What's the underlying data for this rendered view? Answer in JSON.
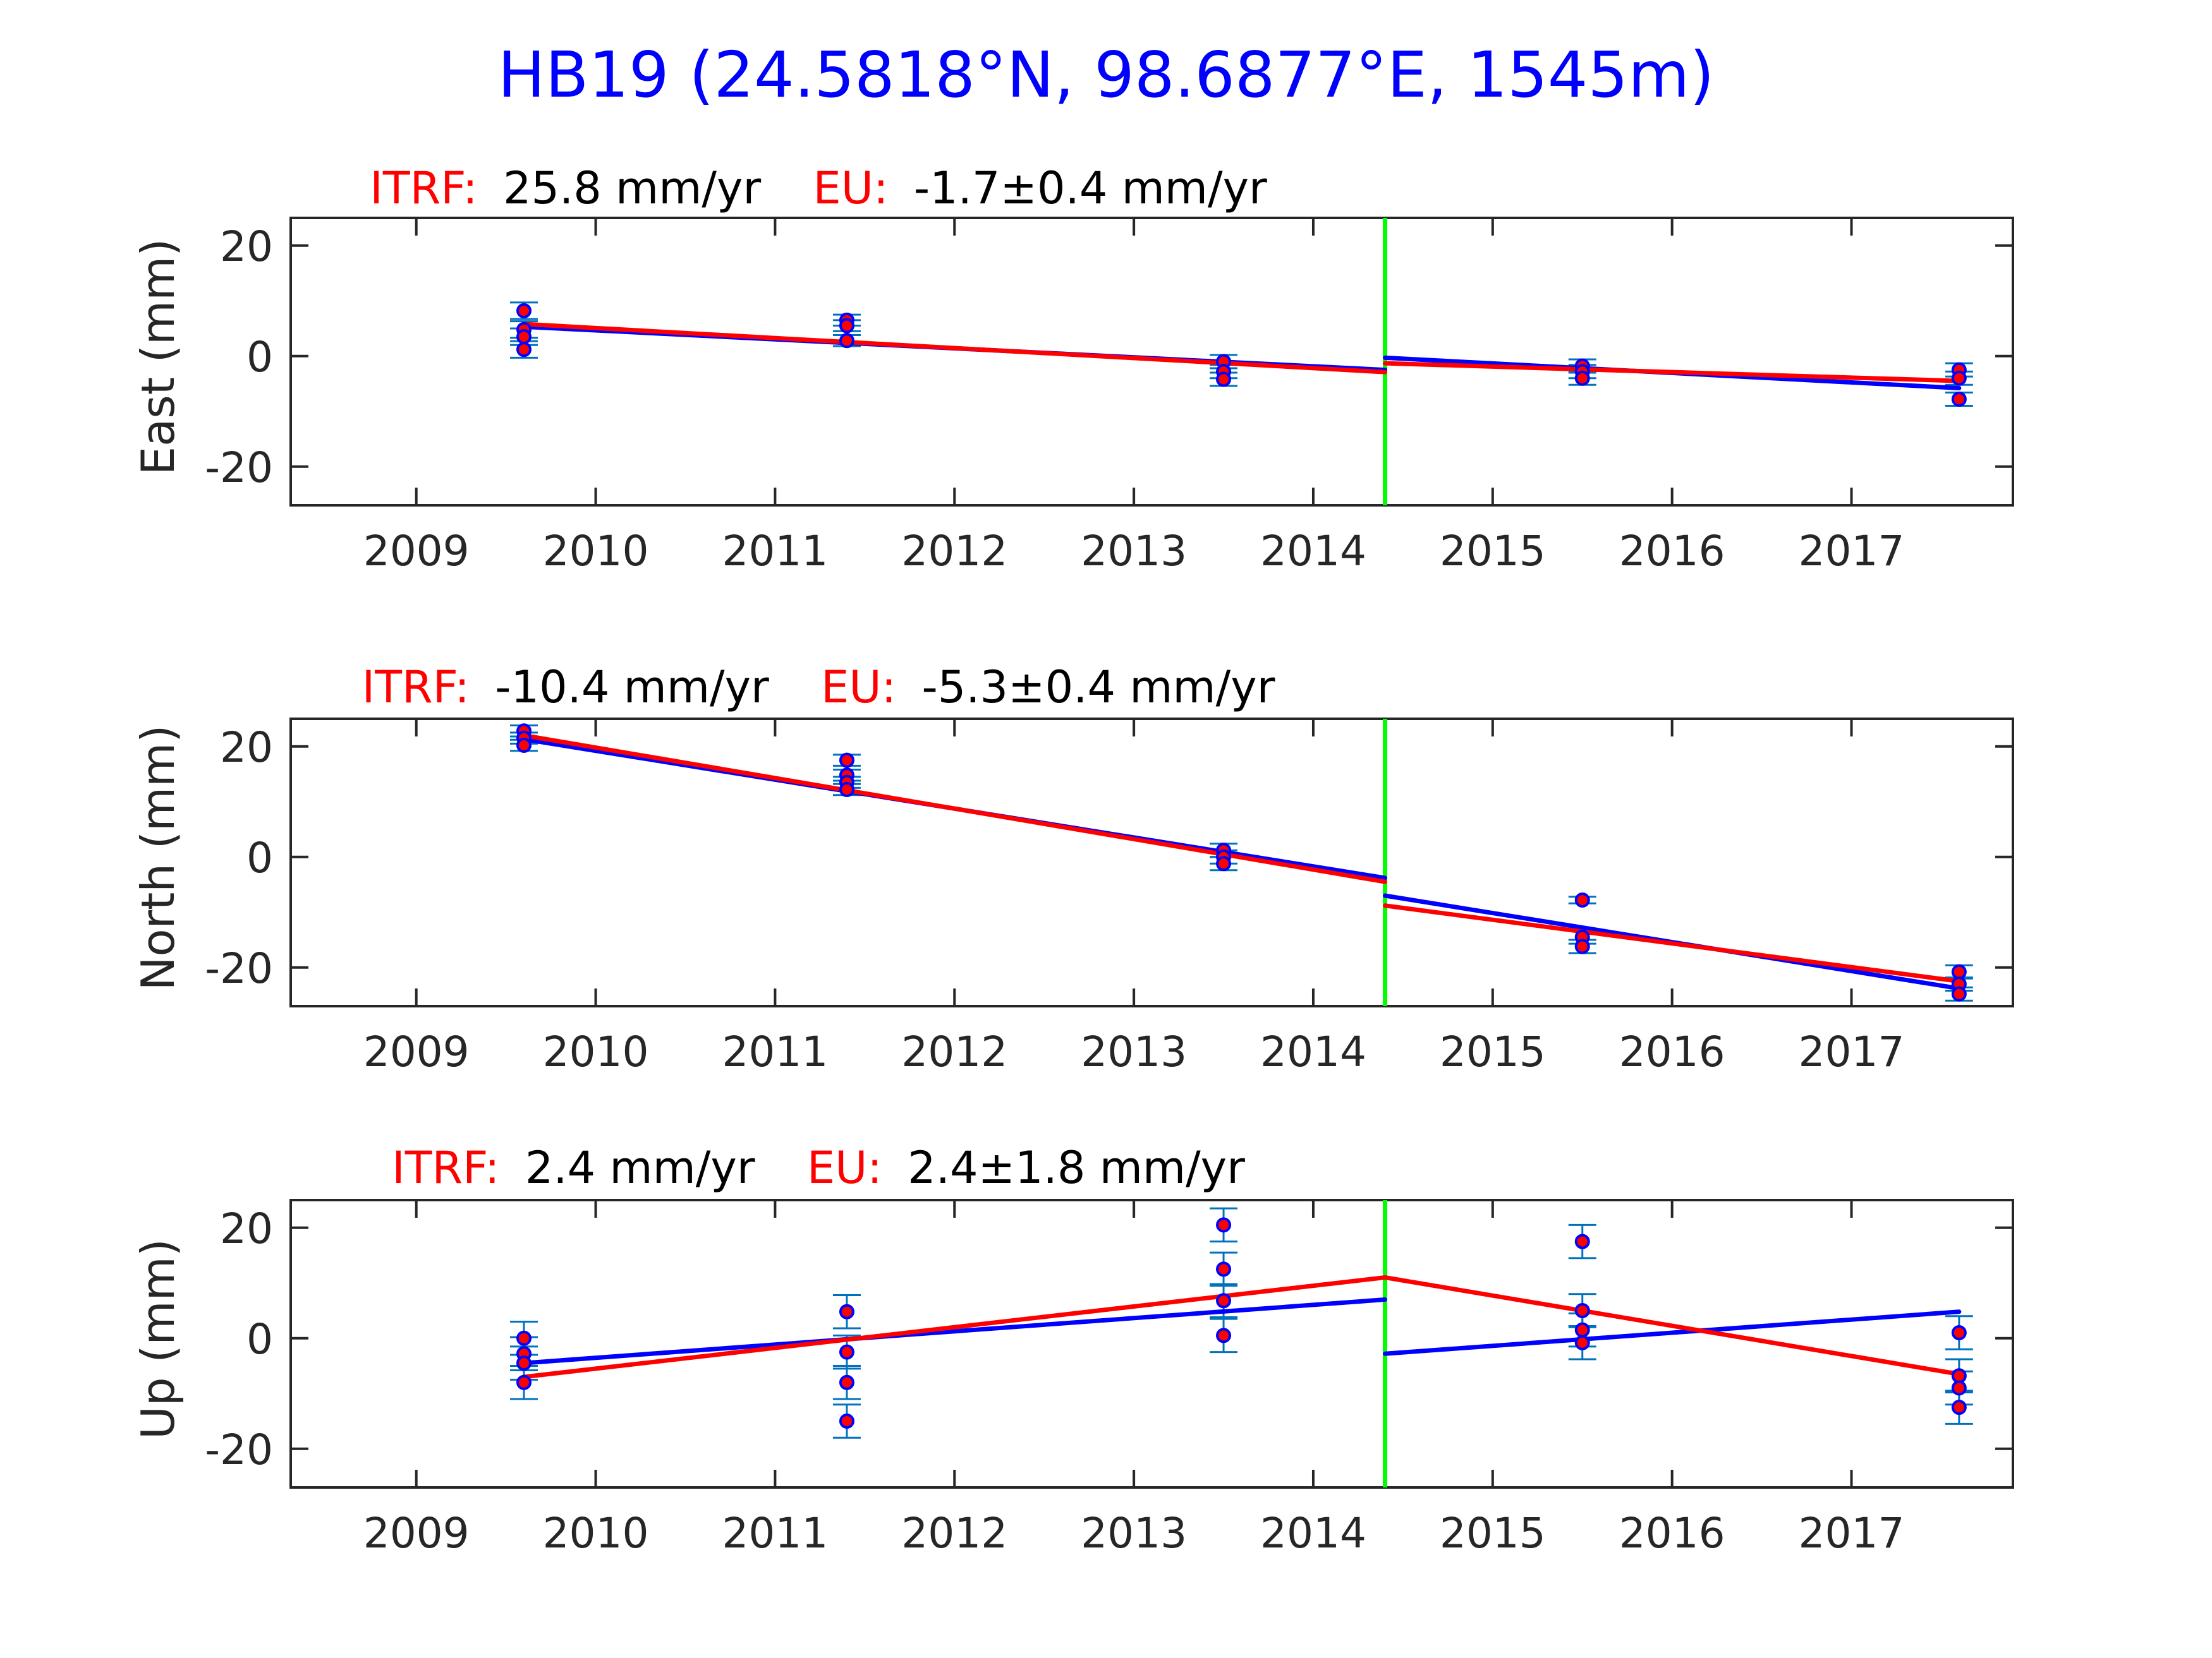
{
  "title": "HB19 (24.5818°N, 98.6877°E, 1545m)",
  "colors": {
    "title": "#0000ff",
    "label_red": "#ff0000",
    "fit_blue": "#0000ff",
    "fit_red": "#ff0000",
    "event_line": "#00ff00",
    "errorbar": "#0072bd",
    "marker_edge": "#0000ff",
    "marker_fill": "#ff0000",
    "axis": "#262626"
  },
  "chart_data": [
    {
      "type": "scatter",
      "title_parts": {
        "itrf_label": "ITRF:",
        "itrf_value": "25.8 mm/yr",
        "eu_label": "EU:",
        "eu_value": "-1.7±0.4 mm/yr"
      },
      "ylabel": "East (mm)",
      "xlim": [
        2008.3,
        2017.9
      ],
      "ylim": [
        -27,
        25
      ],
      "x_ticks": [
        2009,
        2010,
        2011,
        2012,
        2013,
        2014,
        2015,
        2016,
        2017
      ],
      "y_ticks": [
        20,
        0,
        -20
      ],
      "grid": false,
      "event_x": 2014.4,
      "points": [
        {
          "x": 2009.6,
          "y": 8.2,
          "err": 1.5
        },
        {
          "x": 2009.6,
          "y": 4.8,
          "err": 1.5
        },
        {
          "x": 2009.6,
          "y": 3.5,
          "err": 1.5
        },
        {
          "x": 2009.6,
          "y": 1.2,
          "err": 1.5
        },
        {
          "x": 2011.4,
          "y": 6.5,
          "err": 1.0
        },
        {
          "x": 2011.4,
          "y": 5.5,
          "err": 1.0
        },
        {
          "x": 2011.4,
          "y": 2.8,
          "err": 1.0
        },
        {
          "x": 2013.5,
          "y": -1.0,
          "err": 1.2
        },
        {
          "x": 2013.5,
          "y": -2.8,
          "err": 1.2
        },
        {
          "x": 2013.5,
          "y": -4.2,
          "err": 1.2
        },
        {
          "x": 2015.5,
          "y": -1.8,
          "err": 1.2
        },
        {
          "x": 2015.5,
          "y": -2.8,
          "err": 1.2
        },
        {
          "x": 2015.5,
          "y": -4.0,
          "err": 1.2
        },
        {
          "x": 2017.6,
          "y": -2.5,
          "err": 1.2
        },
        {
          "x": 2017.6,
          "y": -4.0,
          "err": 1.2
        },
        {
          "x": 2017.6,
          "y": -7.8,
          "err": 1.2
        }
      ],
      "fits": [
        {
          "color": "blue",
          "segments": [
            [
              [
                2009.6,
                5.3
              ],
              [
                2014.4,
                -2.5
              ]
            ],
            [
              [
                2014.4,
                -0.3
              ],
              [
                2017.6,
                -5.8
              ]
            ]
          ]
        },
        {
          "color": "red",
          "segments": [
            [
              [
                2009.6,
                5.8
              ],
              [
                2014.4,
                -2.9
              ]
            ],
            [
              [
                2014.4,
                -1.3
              ],
              [
                2017.6,
                -4.5
              ]
            ]
          ]
        }
      ]
    },
    {
      "type": "scatter",
      "title_parts": {
        "itrf_label": "ITRF:",
        "itrf_value": "-10.4 mm/yr",
        "eu_label": "EU:",
        "eu_value": "-5.3±0.4 mm/yr"
      },
      "ylabel": "North (mm)",
      "xlim": [
        2008.3,
        2017.9
      ],
      "ylim": [
        -27,
        25
      ],
      "x_ticks": [
        2009,
        2010,
        2011,
        2012,
        2013,
        2014,
        2015,
        2016,
        2017
      ],
      "y_ticks": [
        20,
        0,
        -20
      ],
      "grid": false,
      "event_x": 2014.4,
      "points": [
        {
          "x": 2009.6,
          "y": 22.8,
          "err": 1.0
        },
        {
          "x": 2009.6,
          "y": 21.5,
          "err": 1.0
        },
        {
          "x": 2009.6,
          "y": 20.2,
          "err": 1.0
        },
        {
          "x": 2011.4,
          "y": 17.5,
          "err": 1.0
        },
        {
          "x": 2011.4,
          "y": 14.8,
          "err": 1.0
        },
        {
          "x": 2011.4,
          "y": 13.5,
          "err": 1.0
        },
        {
          "x": 2011.4,
          "y": 12.2,
          "err": 1.0
        },
        {
          "x": 2013.5,
          "y": 1.2,
          "err": 1.2
        },
        {
          "x": 2013.5,
          "y": 0.0,
          "err": 1.2
        },
        {
          "x": 2013.5,
          "y": -1.2,
          "err": 1.2
        },
        {
          "x": 2015.5,
          "y": -7.8,
          "err": 0.6
        },
        {
          "x": 2015.5,
          "y": -14.5,
          "err": 1.2
        },
        {
          "x": 2015.5,
          "y": -16.2,
          "err": 1.2
        },
        {
          "x": 2017.6,
          "y": -20.8,
          "err": 1.2
        },
        {
          "x": 2017.6,
          "y": -23.0,
          "err": 1.2
        },
        {
          "x": 2017.6,
          "y": -24.8,
          "err": 1.2
        }
      ],
      "fits": [
        {
          "color": "blue",
          "segments": [
            [
              [
                2009.6,
                21.3
              ],
              [
                2014.4,
                -3.8
              ]
            ],
            [
              [
                2014.4,
                -7.0
              ],
              [
                2017.6,
                -23.8
              ]
            ]
          ]
        },
        {
          "color": "red",
          "segments": [
            [
              [
                2009.6,
                22.0
              ],
              [
                2014.4,
                -4.5
              ]
            ],
            [
              [
                2014.4,
                -8.8
              ],
              [
                2017.6,
                -22.5
              ]
            ]
          ]
        }
      ]
    },
    {
      "type": "scatter",
      "title_parts": {
        "itrf_label": "ITRF:",
        "itrf_value": "2.4 mm/yr",
        "eu_label": "EU:",
        "eu_value": "2.4±1.8 mm/yr"
      },
      "ylabel": "Up (mm)",
      "xlim": [
        2008.3,
        2017.9
      ],
      "ylim": [
        -27,
        25
      ],
      "x_ticks": [
        2009,
        2010,
        2011,
        2012,
        2013,
        2014,
        2015,
        2016,
        2017
      ],
      "y_ticks": [
        20,
        0,
        -20
      ],
      "grid": false,
      "event_x": 2014.4,
      "points": [
        {
          "x": 2009.6,
          "y": 0.0,
          "err": 3.0
        },
        {
          "x": 2009.6,
          "y": -2.8,
          "err": 3.0
        },
        {
          "x": 2009.6,
          "y": -4.5,
          "err": 3.0
        },
        {
          "x": 2009.6,
          "y": -8.0,
          "err": 3.0
        },
        {
          "x": 2011.4,
          "y": 4.8,
          "err": 3.0
        },
        {
          "x": 2011.4,
          "y": -2.5,
          "err": 3.0
        },
        {
          "x": 2011.4,
          "y": -8.0,
          "err": 3.0
        },
        {
          "x": 2011.4,
          "y": -15.0,
          "err": 3.0
        },
        {
          "x": 2013.5,
          "y": 20.5,
          "err": 3.0
        },
        {
          "x": 2013.5,
          "y": 12.5,
          "err": 3.0
        },
        {
          "x": 2013.5,
          "y": 6.8,
          "err": 3.0
        },
        {
          "x": 2013.5,
          "y": 0.5,
          "err": 3.0
        },
        {
          "x": 2015.5,
          "y": 17.5,
          "err": 3.0
        },
        {
          "x": 2015.5,
          "y": 5.0,
          "err": 3.0
        },
        {
          "x": 2015.5,
          "y": 1.5,
          "err": 3.0
        },
        {
          "x": 2015.5,
          "y": -0.8,
          "err": 3.0
        },
        {
          "x": 2017.6,
          "y": 1.0,
          "err": 3.0
        },
        {
          "x": 2017.6,
          "y": -6.8,
          "err": 3.0
        },
        {
          "x": 2017.6,
          "y": -9.0,
          "err": 3.0
        },
        {
          "x": 2017.6,
          "y": -12.5,
          "err": 3.0
        }
      ],
      "fits": [
        {
          "color": "blue",
          "segments": [
            [
              [
                2009.6,
                -4.5
              ],
              [
                2014.4,
                7.0
              ]
            ],
            [
              [
                2014.4,
                -2.8
              ],
              [
                2017.6,
                4.8
              ]
            ]
          ]
        },
        {
          "color": "red",
          "segments": [
            [
              [
                2009.6,
                -7.0
              ],
              [
                2014.4,
                11.0
              ]
            ],
            [
              [
                2014.4,
                11.0
              ],
              [
                2017.6,
                -6.5
              ]
            ]
          ]
        }
      ]
    }
  ]
}
